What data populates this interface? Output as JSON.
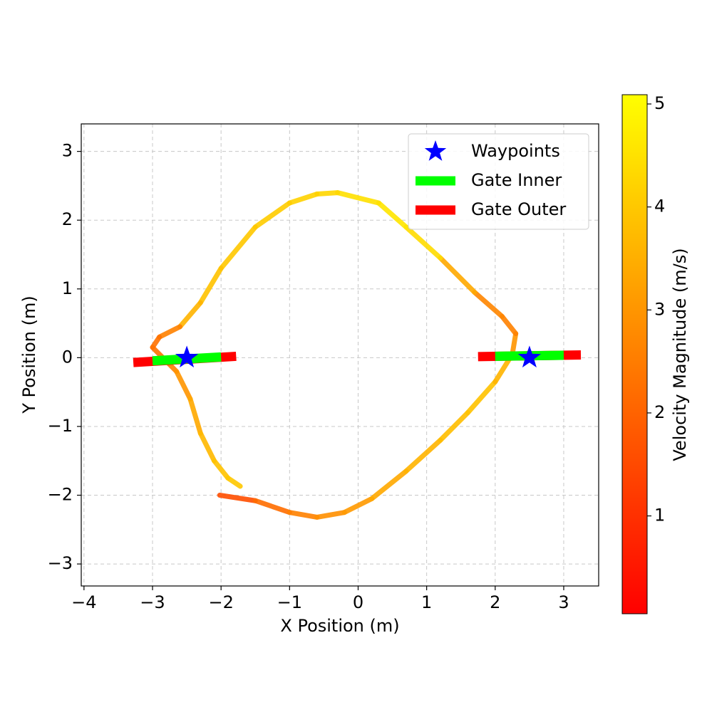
{
  "chart_data": {
    "type": "trajectory",
    "x_label": "X Position (m)",
    "y_label": "Y Position (m)",
    "colorbar_label": "Velocity Magnitude (m/s)",
    "xlim": [
      -4.04,
      3.51
    ],
    "ylim": [
      -3.32,
      3.4
    ],
    "xticks": [
      {
        "value": -4,
        "label": "−4"
      },
      {
        "value": -3,
        "label": "−3"
      },
      {
        "value": -2,
        "label": "−2"
      },
      {
        "value": -1,
        "label": "−1"
      },
      0,
      1,
      2,
      3
    ],
    "yticks": [
      {
        "value": -3,
        "label": "−3"
      },
      {
        "value": -2,
        "label": "−2"
      },
      {
        "value": -1,
        "label": "−1"
      },
      0,
      1,
      2,
      3
    ],
    "clim": [
      0.05,
      5.09
    ],
    "cticks": [
      1,
      2,
      3,
      4,
      5
    ],
    "colormap": "autumn",
    "grid": true,
    "legend": "upper right",
    "trajectory": {
      "x": [
        -2.02,
        -1.5,
        -1.0,
        -0.6,
        -0.2,
        0.2,
        0.7,
        1.2,
        1.6,
        2.0,
        2.25,
        2.3,
        2.1,
        1.7,
        1.2,
        0.7,
        0.3,
        -0.3,
        -0.6,
        -1.0,
        -1.5,
        -2.0,
        -2.3,
        -2.6,
        -2.9,
        -3.0,
        -2.85,
        -2.65,
        -2.45,
        -2.3,
        -2.1,
        -1.9,
        -1.72
      ],
      "y": [
        -2.0,
        -2.08,
        -2.25,
        -2.32,
        -2.25,
        -2.05,
        -1.65,
        -1.2,
        -0.8,
        -0.35,
        0.05,
        0.35,
        0.6,
        0.95,
        1.45,
        1.9,
        2.25,
        2.4,
        2.38,
        2.25,
        1.9,
        1.3,
        0.8,
        0.45,
        0.3,
        0.15,
        0.0,
        -0.2,
        -0.6,
        -1.1,
        -1.5,
        -1.75,
        -1.87
      ],
      "velocity": [
        1.6,
        2.2,
        2.6,
        2.9,
        3.1,
        3.4,
        3.6,
        3.8,
        3.9,
        3.6,
        3.0,
        2.6,
        2.7,
        3.4,
        4.4,
        4.6,
        4.5,
        4.3,
        4.2,
        4.1,
        4.0,
        3.9,
        3.6,
        2.6,
        2.3,
        2.3,
        2.6,
        3.0,
        3.4,
        3.7,
        3.9,
        4.0,
        4.0
      ]
    },
    "waypoints": {
      "name": "Waypoints",
      "color": "#0000ff",
      "x": [
        -2.5,
        2.5
      ],
      "y": [
        0,
        0
      ]
    },
    "gate_inner": {
      "name": "Gate Inner",
      "color": "#00ff00",
      "segments": [
        {
          "x": [
            -3.0,
            -2.0
          ],
          "y": [
            -0.045,
            0.01
          ]
        },
        {
          "x": [
            2.0,
            3.0
          ],
          "y": [
            0.02,
            0.035
          ]
        }
      ]
    },
    "gate_outer": {
      "name": "Gate Outer",
      "color": "#ff0000",
      "segments": [
        {
          "x": [
            -3.28,
            -1.78
          ],
          "y": [
            -0.07,
            0.02
          ]
        },
        {
          "x": [
            1.75,
            3.25
          ],
          "y": [
            0.015,
            0.04
          ]
        }
      ]
    }
  }
}
